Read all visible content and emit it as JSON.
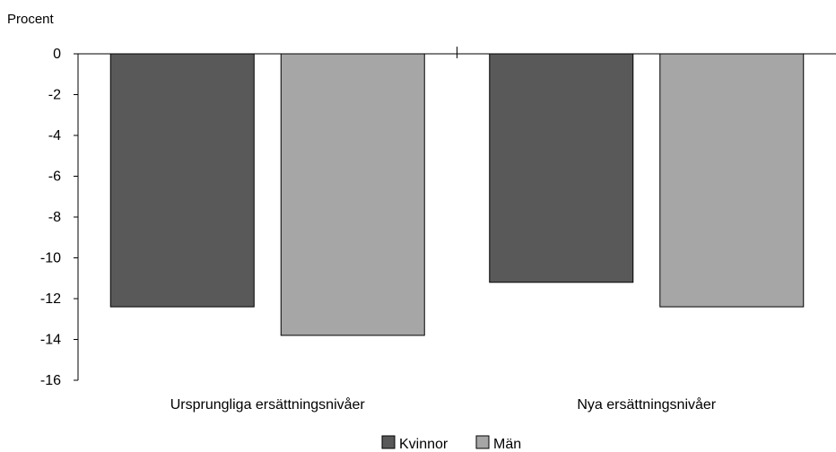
{
  "chart_data": {
    "type": "bar",
    "ylabel": "Procent",
    "categories": [
      "Ursprungliga ersättningsnivåer",
      "Nya ersättningsnivåer"
    ],
    "series": [
      {
        "name": "Kvinnor",
        "values": [
          -12.4,
          -11.2
        ]
      },
      {
        "name": "Män",
        "values": [
          -13.8,
          -12.4
        ]
      }
    ],
    "ylim": [
      -16,
      0
    ],
    "yticks": [
      0,
      -2,
      -4,
      -6,
      -8,
      -10,
      -12,
      -14,
      -16
    ],
    "grid": false,
    "legend": "bottom-center"
  },
  "colors": {
    "Kvinnor": "#595959",
    "Män": "#a6a6a6"
  }
}
